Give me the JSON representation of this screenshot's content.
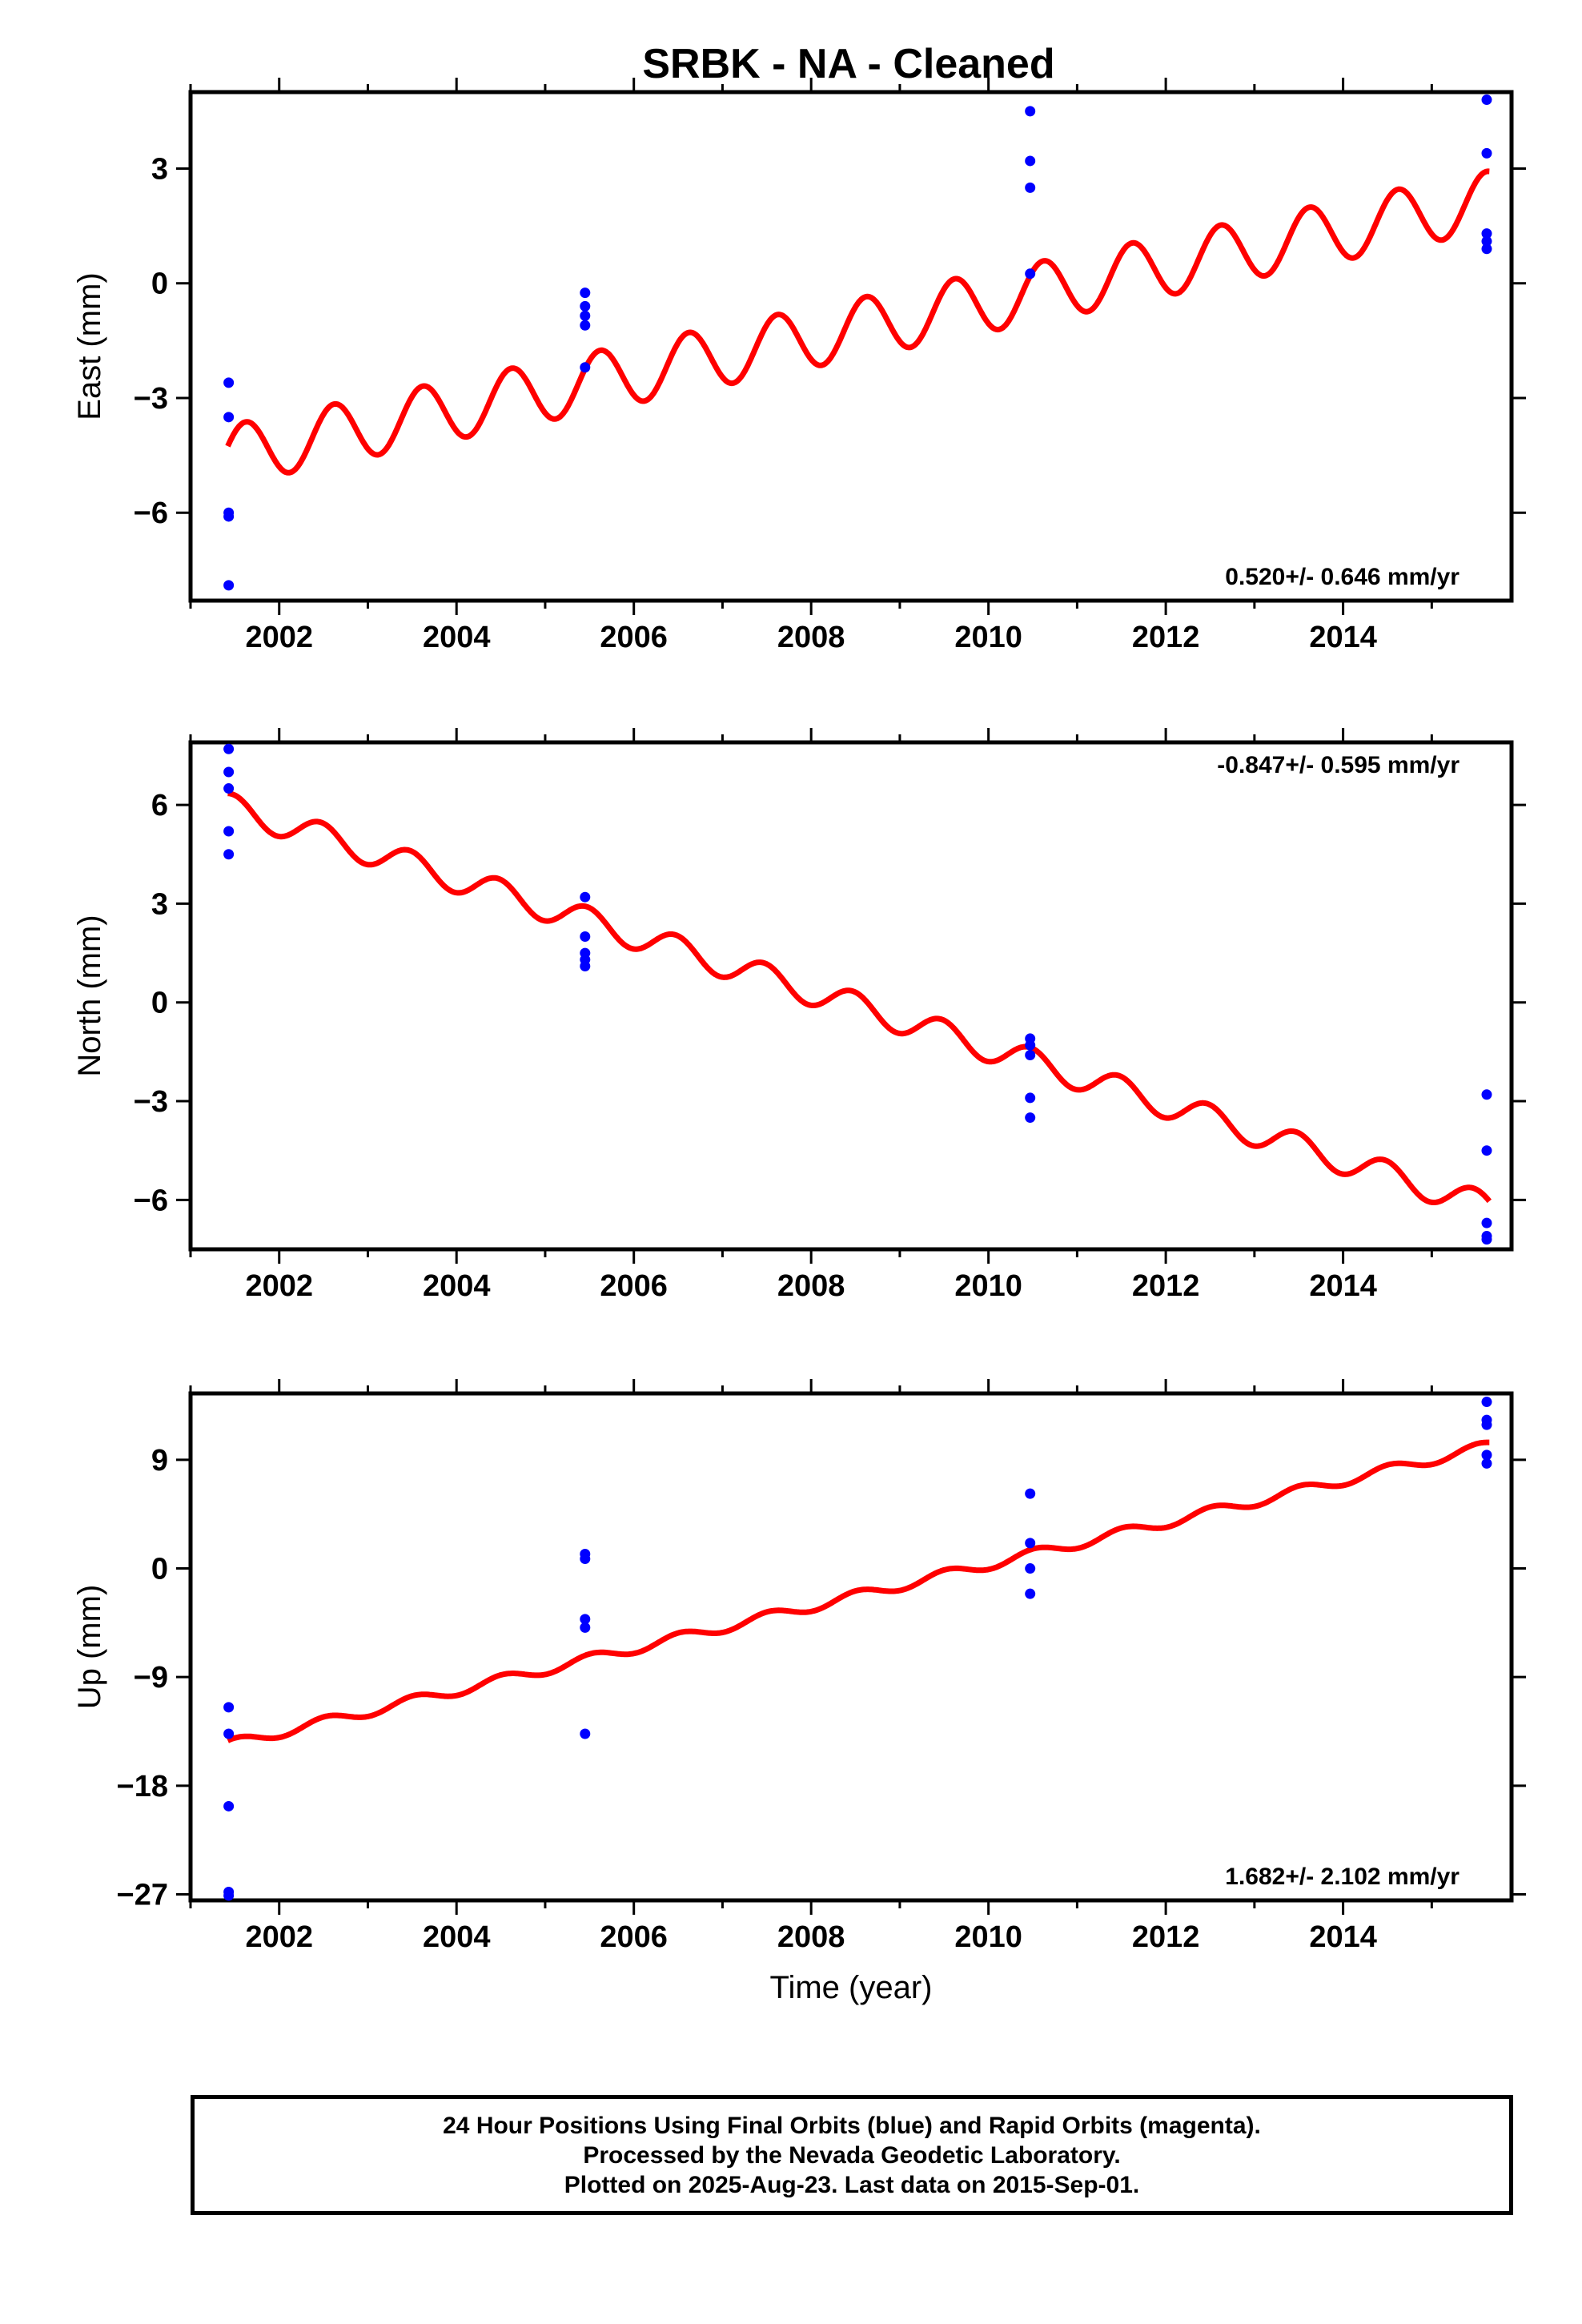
{
  "title": "SRBK  - NA - Cleaned",
  "chart_data": [
    {
      "type": "scatter",
      "panel": "east",
      "ylabel": "East (mm)",
      "xlabel": "",
      "xlim": [
        2001.0,
        2015.9
      ],
      "ylim": [
        -8.3,
        5.0
      ],
      "xticks": [
        2002,
        2004,
        2006,
        2008,
        2010,
        2012,
        2014
      ],
      "yticks": [
        -6,
        -3,
        0,
        3
      ],
      "ytick_labels": [
        "−6",
        "−3",
        "0",
        "3"
      ],
      "rate_label": "0.520+/- 0.646 mm/yr",
      "rate_position": "bottom-right",
      "points": {
        "color": "#0000ff",
        "x": [
          2001.43,
          2001.43,
          2001.43,
          2001.43,
          2001.43,
          2005.45,
          2005.45,
          2005.45,
          2005.45,
          2005.45,
          2010.47,
          2010.47,
          2010.47,
          2010.47,
          2015.62,
          2015.62,
          2015.62,
          2015.62,
          2015.62
        ],
        "y": [
          -2.6,
          -3.5,
          -6.0,
          -6.1,
          -7.9,
          -0.25,
          -0.6,
          -0.85,
          -1.1,
          -2.2,
          4.5,
          3.2,
          2.5,
          0.25,
          4.8,
          3.4,
          1.3,
          1.1,
          0.9
        ]
      },
      "trend": {
        "color": "#ff0000",
        "x0": 2001.42,
        "x1": 2015.65,
        "y0": -4.5,
        "slope": 0.468,
        "amp": 0.78,
        "phase_year": 0.05
      }
    },
    {
      "type": "scatter",
      "panel": "north",
      "ylabel": "North (mm)",
      "xlabel": "",
      "xlim": [
        2001.0,
        2015.9
      ],
      "ylim": [
        -7.5,
        7.9
      ],
      "xticks": [
        2002,
        2004,
        2006,
        2008,
        2010,
        2012,
        2014
      ],
      "yticks": [
        -6,
        -3,
        0,
        3,
        6
      ],
      "ytick_labels": [
        "−6",
        "−3",
        "0",
        "3",
        "6"
      ],
      "rate_label": "-0.847+/- 0.595 mm/yr",
      "rate_position": "top-right",
      "points": {
        "color": "#0000ff",
        "x": [
          2001.43,
          2001.43,
          2001.43,
          2001.43,
          2001.43,
          2005.45,
          2005.45,
          2005.45,
          2005.45,
          2005.45,
          2010.47,
          2010.47,
          2010.47,
          2010.47,
          2010.47,
          2015.62,
          2015.62,
          2015.62,
          2015.62,
          2015.62
        ],
        "y": [
          7.7,
          7.0,
          6.5,
          5.2,
          4.5,
          3.2,
          2.0,
          1.5,
          1.3,
          1.1,
          -1.1,
          -1.3,
          -1.6,
          -2.9,
          -3.5,
          -2.8,
          -4.5,
          -6.7,
          -7.1,
          -7.2
        ]
      },
      "trend": {
        "color": "#ff0000",
        "x0": 2001.42,
        "x1": 2015.65,
        "y0": 5.95,
        "slope": -0.855,
        "amp": 0.42,
        "phase_year": 0.2
      }
    },
    {
      "type": "scatter",
      "panel": "up",
      "ylabel": "Up (mm)",
      "xlabel": "Time (year)",
      "xlim": [
        2001.0,
        2015.9
      ],
      "ylim": [
        -27.5,
        14.5
      ],
      "xticks": [
        2002,
        2004,
        2006,
        2008,
        2010,
        2012,
        2014
      ],
      "yticks": [
        -27,
        -18,
        -9,
        0,
        9
      ],
      "ytick_labels": [
        "−27",
        "−18",
        "−9",
        "0",
        "9"
      ],
      "rate_label": "1.682+/- 2.102 mm/yr",
      "rate_position": "bottom-right",
      "points": {
        "color": "#0000ff",
        "x": [
          2001.43,
          2001.43,
          2001.43,
          2001.43,
          2001.43,
          2005.45,
          2005.45,
          2005.45,
          2005.45,
          2005.45,
          2010.47,
          2010.47,
          2010.47,
          2010.47,
          2015.62,
          2015.62,
          2015.62,
          2015.62,
          2015.62
        ],
        "y": [
          -11.5,
          -13.7,
          -19.7,
          -26.8,
          -27.1,
          1.2,
          0.8,
          -4.2,
          -4.9,
          -13.7,
          6.2,
          2.1,
          0.0,
          -2.1,
          13.8,
          12.3,
          11.9,
          9.4,
          8.7
        ]
      },
      "trend": {
        "color": "#ff0000",
        "x0": 2001.42,
        "x1": 2015.65,
        "y0": -14.6,
        "slope": 1.74,
        "amp": 0.42,
        "phase_year": 0.15
      }
    }
  ],
  "footer": {
    "lines": [
      "24 Hour Positions Using Final Orbits (blue) and Rapid Orbits (magenta).",
      "Processed by the Nevada Geodetic Laboratory.",
      "Plotted on 2025-Aug-23. Last data on 2015-Sep-01."
    ]
  }
}
